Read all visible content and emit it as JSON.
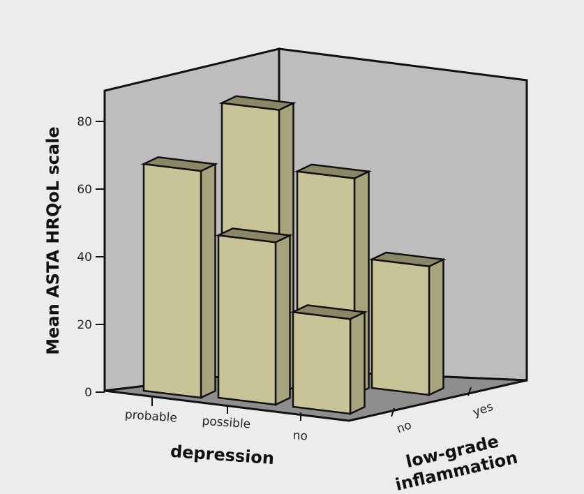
{
  "chart_data": {
    "type": "bar",
    "subtype": "3d-clustered",
    "ylabel": "Mean ASTA HRQoL scale",
    "xlabel": "depression",
    "zlabel": "low-grade inflammation",
    "ylim": [
      0,
      90
    ],
    "yticks": [
      0,
      20,
      40,
      60,
      80
    ],
    "categories": [
      "probable",
      "possible",
      "no"
    ],
    "series": [
      {
        "name": "no",
        "values": [
          67,
          48,
          28
        ]
      },
      {
        "name": "yes",
        "values": [
          null,
          84,
          64
        ]
      }
    ],
    "extra_yes_third": 38,
    "colors": {
      "front": "#c8c497",
      "side": "#a7a37c",
      "top": "#8a8766",
      "back_wall": "#bdbdbd",
      "side_wall": "#9c9c9c",
      "floor": "#8e8e8e"
    }
  },
  "labels": {
    "z_cat_no": "no",
    "z_cat_yes": "yes"
  }
}
